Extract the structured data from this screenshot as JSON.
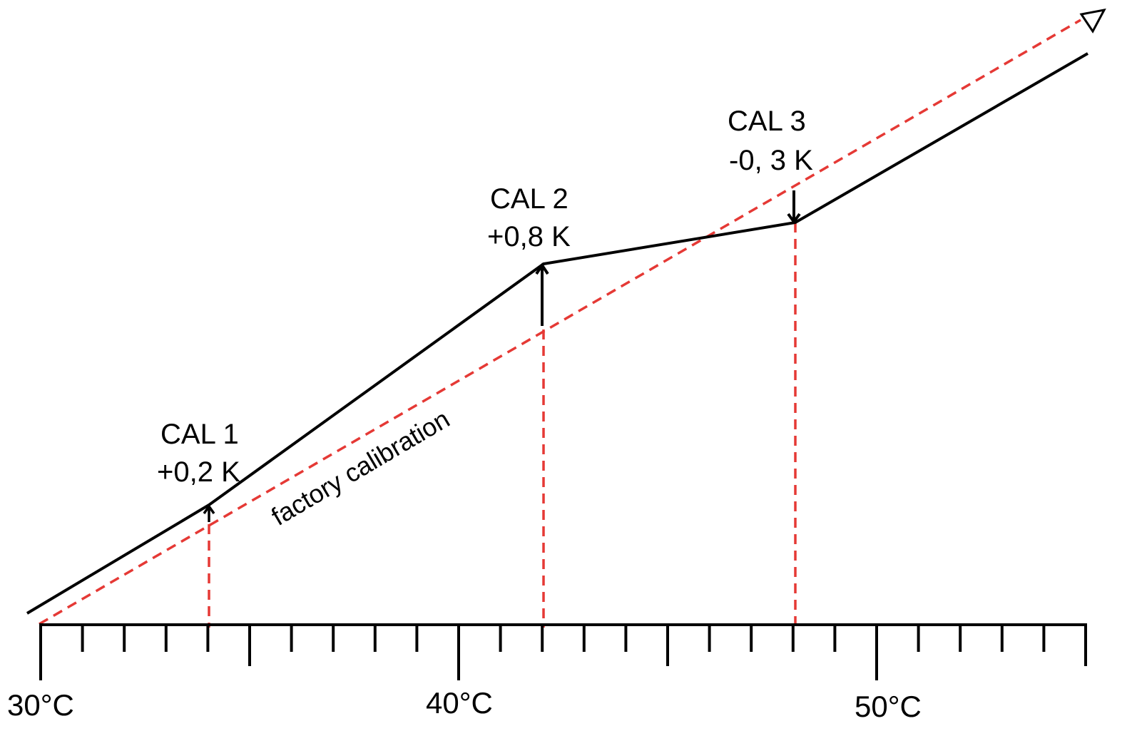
{
  "colors": {
    "calibrated_line": "#000000",
    "factory_line": "#e53935",
    "axis": "#000000",
    "drop_lines": "#e53935"
  },
  "axis": {
    "labels": [
      "30°C",
      "40°C",
      "50°C"
    ]
  },
  "factory": {
    "label": "factory calibration"
  },
  "calibration_points": [
    {
      "name": "CAL 1",
      "offset": "+0,2 K"
    },
    {
      "name": "CAL 2",
      "offset": "+0,8 K"
    },
    {
      "name": "CAL 3",
      "offset": "-0, 3 K"
    }
  ]
}
